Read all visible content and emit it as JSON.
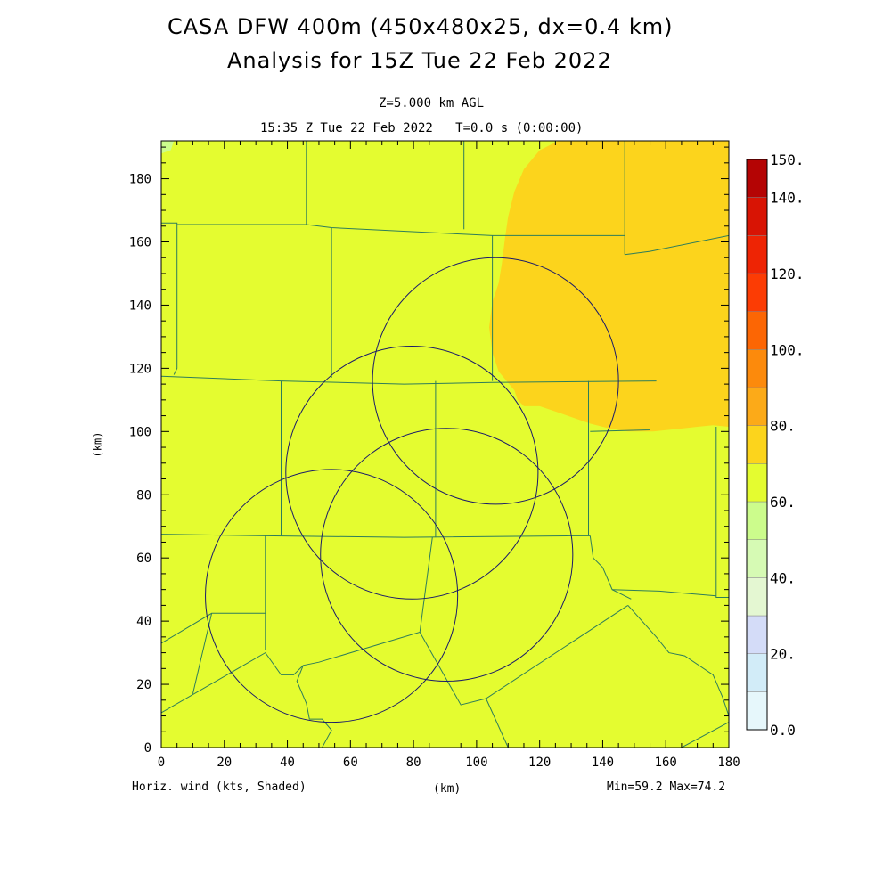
{
  "chart_data": {
    "type": "heatmap",
    "title_line1": "CASA DFW 400m (450x480x25, dx=0.4 km)",
    "title_line2": "Analysis for 15Z Tue 22 Feb 2022",
    "subtitle_level": "Z=5.000 km AGL",
    "subtitle_time": "15:35 Z Tue 22 Feb 2022   T=0.0 s (0:00:00)",
    "xlabel": "(km)",
    "ylabel": "(km)",
    "xlim": [
      0,
      180
    ],
    "ylim": [
      0,
      192
    ],
    "x_ticks": [
      0,
      20,
      40,
      60,
      80,
      100,
      120,
      140,
      160,
      180
    ],
    "y_ticks": [
      0,
      20,
      40,
      60,
      80,
      100,
      120,
      140,
      160,
      180
    ],
    "variable_label": "Horiz. wind (kts, Shaded)",
    "min_max_label": "Min=59.2 Max=74.2",
    "min": 59.2,
    "max": 74.2,
    "colorbar": {
      "range": [
        0,
        150
      ],
      "labels": [
        "150.",
        "140.",
        "120.",
        "100.",
        "80.",
        "60.",
        "40.",
        "20.",
        "0.0"
      ],
      "label_values": [
        150,
        140,
        120,
        100,
        80,
        60,
        40,
        20,
        0
      ],
      "bins": [
        {
          "from": 0,
          "to": 10,
          "color": "#e6f7fb"
        },
        {
          "from": 10,
          "to": 20,
          "color": "#d2ecf8"
        },
        {
          "from": 20,
          "to": 30,
          "color": "#d4dcf8"
        },
        {
          "from": 30,
          "to": 40,
          "color": "#e4f7d2"
        },
        {
          "from": 40,
          "to": 50,
          "color": "#d6fab4"
        },
        {
          "from": 50,
          "to": 60,
          "color": "#ccfc8c"
        },
        {
          "from": 60,
          "to": 70,
          "color": "#e4fc30"
        },
        {
          "from": 70,
          "to": 80,
          "color": "#fcd41c"
        },
        {
          "from": 80,
          "to": 90,
          "color": "#fcaa18"
        },
        {
          "from": 90,
          "to": 100,
          "color": "#fc8a0c"
        },
        {
          "from": 100,
          "to": 110,
          "color": "#fc6604"
        },
        {
          "from": 110,
          "to": 120,
          "color": "#fc3c04"
        },
        {
          "from": 120,
          "to": 130,
          "color": "#ee2404"
        },
        {
          "from": 130,
          "to": 140,
          "color": "#d81404"
        },
        {
          "from": 140,
          "to": 150,
          "color": "#b40404"
        }
      ]
    },
    "field": {
      "background_value_kts": 65,
      "background_color": "#e4fc30",
      "regions": [
        {
          "value_kts": 72,
          "color": "#fcd41c",
          "polygon": [
            [
              126,
              192
            ],
            [
              180,
              192
            ],
            [
              180,
              101.5
            ],
            [
              175,
              102
            ],
            [
              170,
              101.5
            ],
            [
              156,
              100
            ],
            [
              148,
              100
            ],
            [
              142,
              101
            ],
            [
              136,
              102.5
            ],
            [
              126,
              106
            ],
            [
              120,
              108
            ],
            [
              115,
              108
            ],
            [
              113,
              110
            ],
            [
              112,
              113
            ],
            [
              107,
              119
            ],
            [
              105,
              125
            ],
            [
              104,
              133
            ],
            [
              105,
              141
            ],
            [
              107,
              147
            ],
            [
              108,
              153
            ],
            [
              109,
              161
            ],
            [
              110,
              168
            ],
            [
              112,
              176
            ],
            [
              115,
              183
            ],
            [
              120,
              189
            ],
            [
              126,
              192
            ]
          ]
        },
        {
          "value_kts": 65,
          "color": "#ccfc8c",
          "polygon": [
            [
              0,
              192
            ],
            [
              4,
              192
            ],
            [
              3,
              189
            ],
            [
              0,
              188
            ]
          ]
        }
      ]
    },
    "radar_range_rings": [
      {
        "cx": 106,
        "cy": 116,
        "r": 39
      },
      {
        "cx": 79.5,
        "cy": 87,
        "r": 40
      },
      {
        "cx": 90.5,
        "cy": 61,
        "r": 40
      },
      {
        "cx": 54,
        "cy": 48,
        "r": 40
      }
    ],
    "county_boundaries": [
      [
        [
          0,
          166
        ],
        [
          5,
          166
        ],
        [
          5,
          120
        ],
        [
          4,
          118
        ]
      ],
      [
        [
          0,
          117.5
        ],
        [
          38,
          116
        ],
        [
          77,
          115
        ],
        [
          105,
          115.5
        ],
        [
          157,
          116
        ]
      ],
      [
        [
          0,
          67.5
        ],
        [
          33,
          67
        ],
        [
          77,
          66.5
        ],
        [
          130,
          67
        ],
        [
          136,
          67
        ]
      ],
      [
        [
          5,
          165.5
        ],
        [
          46,
          165.5
        ],
        [
          54,
          164.5
        ],
        [
          105,
          162
        ],
        [
          147,
          162
        ]
      ],
      [
        [
          46,
          192
        ],
        [
          46,
          165.5
        ]
      ],
      [
        [
          96,
          192
        ],
        [
          96,
          164
        ]
      ],
      [
        [
          147,
          192
        ],
        [
          147,
          156
        ]
      ],
      [
        [
          147,
          156
        ],
        [
          155,
          157
        ],
        [
          180,
          162
        ]
      ],
      [
        [
          54,
          164.5
        ],
        [
          54,
          117
        ]
      ],
      [
        [
          105,
          162
        ],
        [
          105,
          116
        ]
      ],
      [
        [
          155,
          157
        ],
        [
          155,
          116
        ]
      ],
      [
        [
          38,
          116
        ],
        [
          38,
          67
        ]
      ],
      [
        [
          87,
          116
        ],
        [
          87,
          66.5
        ]
      ],
      [
        [
          135.5,
          116
        ],
        [
          135.5,
          67
        ]
      ],
      [
        [
          155,
          116
        ],
        [
          155,
          100.5
        ],
        [
          136,
          100
        ]
      ],
      [
        [
          176,
          101.5
        ],
        [
          176,
          47.5
        ],
        [
          180,
          47.5
        ]
      ],
      [
        [
          136,
          67
        ],
        [
          137,
          60
        ],
        [
          140,
          57
        ],
        [
          143,
          50
        ],
        [
          149,
          47
        ]
      ],
      [
        [
          143,
          50
        ],
        [
          158,
          49.5
        ],
        [
          176,
          48
        ]
      ],
      [
        [
          33,
          67
        ],
        [
          33,
          31
        ]
      ],
      [
        [
          0,
          33
        ],
        [
          16,
          42.5
        ],
        [
          33,
          42.5
        ]
      ],
      [
        [
          10,
          17
        ],
        [
          16,
          42.5
        ]
      ],
      [
        [
          0,
          11
        ],
        [
          33,
          30
        ],
        [
          38,
          23
        ],
        [
          42,
          23
        ],
        [
          45,
          26
        ],
        [
          50,
          27
        ],
        [
          82,
          36.5
        ],
        [
          86,
          66.5
        ]
      ],
      [
        [
          82,
          36.5
        ],
        [
          95,
          13.5
        ],
        [
          103,
          15.5
        ],
        [
          148,
          45
        ]
      ],
      [
        [
          45,
          26
        ],
        [
          43,
          21
        ],
        [
          46,
          14
        ],
        [
          47,
          9
        ],
        [
          51,
          9
        ],
        [
          54,
          5.5
        ],
        [
          51,
          0
        ]
      ],
      [
        [
          103,
          15.5
        ],
        [
          110,
          0
        ]
      ],
      [
        [
          148,
          45
        ],
        [
          157,
          35
        ],
        [
          161,
          30
        ],
        [
          166,
          29
        ],
        [
          175,
          23
        ],
        [
          178,
          16
        ],
        [
          180,
          10
        ]
      ],
      [
        [
          165,
          0
        ],
        [
          180,
          8
        ]
      ]
    ]
  }
}
